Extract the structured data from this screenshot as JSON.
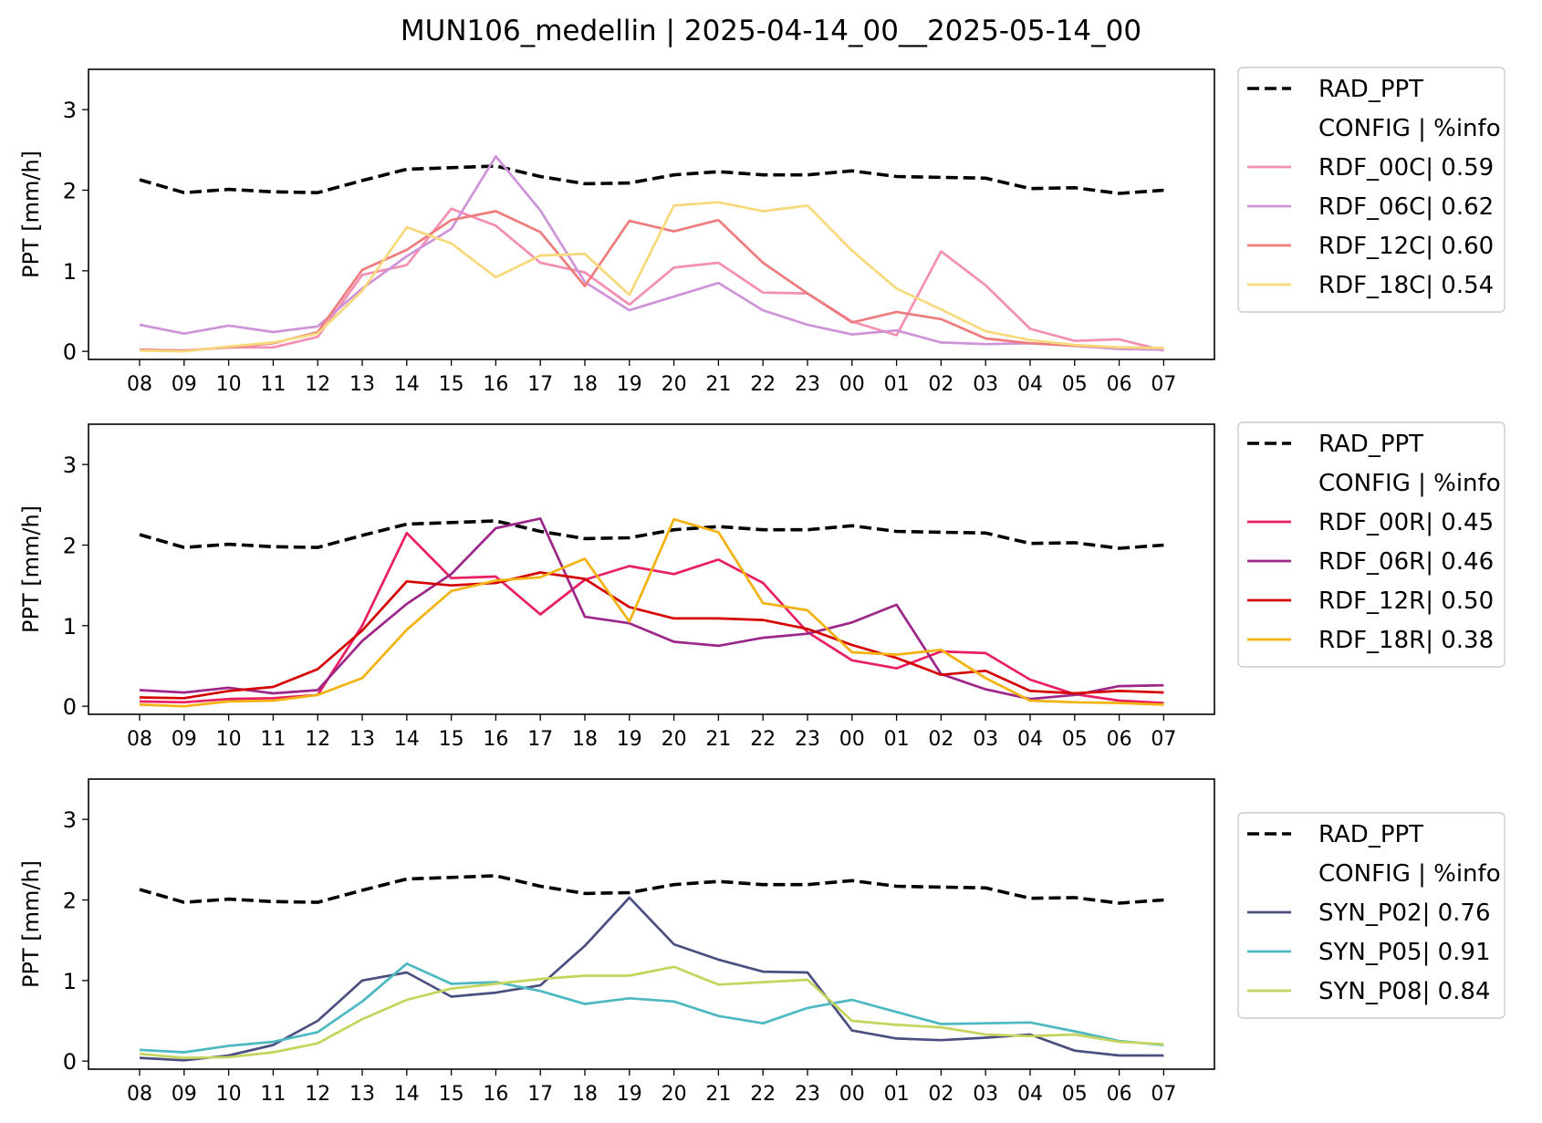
{
  "figure_title": "MUN106_medellin | 2025-04-14_00__2025-05-14_00",
  "chart_data": [
    {
      "type": "line",
      "ylabel": "PPT [mm/h]",
      "ylim": [
        -0.1,
        3.5
      ],
      "yticks": [
        0,
        1,
        2,
        3
      ],
      "categories": [
        "08",
        "09",
        "10",
        "11",
        "12",
        "13",
        "14",
        "15",
        "16",
        "17",
        "18",
        "19",
        "20",
        "21",
        "22",
        "23",
        "00",
        "01",
        "02",
        "03",
        "04",
        "05",
        "06",
        "07"
      ],
      "legend_placement": "outside-right",
      "legend_header": "CONFIG  | %info",
      "series": [
        {
          "name": "RAD_PPT",
          "color": "#000000",
          "dashed": true,
          "values": [
            2.13,
            1.97,
            2.01,
            1.98,
            1.97,
            2.12,
            2.26,
            2.28,
            2.3,
            2.17,
            2.08,
            2.09,
            2.19,
            2.23,
            2.19,
            2.19,
            2.24,
            2.17,
            2.16,
            2.15,
            2.02,
            2.03,
            1.96,
            2.0
          ]
        },
        {
          "name": "RDF_00C| 0.59",
          "color": "#f48fb1",
          "values": [
            0.02,
            0.01,
            0.05,
            0.05,
            0.18,
            0.95,
            1.07,
            1.77,
            1.56,
            1.1,
            0.98,
            0.58,
            1.04,
            1.1,
            0.73,
            0.72,
            0.37,
            0.2,
            1.24,
            0.82,
            0.28,
            0.13,
            0.15,
            0.01
          ]
        },
        {
          "name": "RDF_06C| 0.62",
          "color": "#ce93d8",
          "values": [
            0.33,
            0.22,
            0.32,
            0.24,
            0.31,
            0.78,
            1.18,
            1.52,
            2.42,
            1.75,
            0.86,
            0.51,
            0.68,
            0.85,
            0.51,
            0.33,
            0.21,
            0.26,
            0.11,
            0.09,
            0.1,
            0.07,
            0.03,
            0.02
          ]
        },
        {
          "name": "RDF_12C| 0.60",
          "color": "#ef7c7c",
          "values": [
            0.02,
            0.01,
            0.05,
            0.1,
            0.24,
            1.01,
            1.26,
            1.63,
            1.74,
            1.48,
            0.81,
            1.62,
            1.49,
            1.63,
            1.1,
            0.72,
            0.36,
            0.49,
            0.4,
            0.16,
            0.1,
            0.07,
            0.05,
            0.04
          ]
        },
        {
          "name": "RDF_18C| 0.54",
          "color": "#f7d97c",
          "values": [
            0.01,
            0.0,
            0.06,
            0.11,
            0.22,
            0.75,
            1.54,
            1.34,
            0.92,
            1.19,
            1.21,
            0.7,
            1.81,
            1.85,
            1.74,
            1.81,
            1.25,
            0.78,
            0.52,
            0.25,
            0.14,
            0.08,
            0.05,
            0.04
          ]
        }
      ]
    },
    {
      "type": "line",
      "ylabel": "PPT [mm/h]",
      "ylim": [
        -0.1,
        3.5
      ],
      "yticks": [
        0,
        1,
        2,
        3
      ],
      "categories": [
        "08",
        "09",
        "10",
        "11",
        "12",
        "13",
        "14",
        "15",
        "16",
        "17",
        "18",
        "19",
        "20",
        "21",
        "22",
        "23",
        "00",
        "01",
        "02",
        "03",
        "04",
        "05",
        "06",
        "07"
      ],
      "legend_placement": "outside-right",
      "legend_header": "CONFIG  | %info",
      "series": [
        {
          "name": "RAD_PPT",
          "color": "#000000",
          "dashed": true,
          "values": [
            2.13,
            1.97,
            2.01,
            1.98,
            1.97,
            2.12,
            2.26,
            2.28,
            2.3,
            2.17,
            2.08,
            2.09,
            2.19,
            2.23,
            2.19,
            2.19,
            2.24,
            2.17,
            2.16,
            2.15,
            2.02,
            2.03,
            1.96,
            2.0
          ]
        },
        {
          "name": "RDF_00R| 0.45",
          "color": "#e91e63",
          "values": [
            0.06,
            0.05,
            0.09,
            0.1,
            0.14,
            1.0,
            2.15,
            1.59,
            1.61,
            1.14,
            1.57,
            1.74,
            1.64,
            1.82,
            1.53,
            0.92,
            0.57,
            0.47,
            0.68,
            0.66,
            0.33,
            0.15,
            0.07,
            0.04
          ]
        },
        {
          "name": "RDF_06R| 0.46",
          "color": "#9c2789",
          "values": [
            0.2,
            0.17,
            0.23,
            0.16,
            0.2,
            0.81,
            1.27,
            1.64,
            2.21,
            2.33,
            1.11,
            1.03,
            0.8,
            0.75,
            0.85,
            0.9,
            1.04,
            1.26,
            0.4,
            0.21,
            0.09,
            0.14,
            0.25,
            0.26
          ]
        },
        {
          "name": "RDF_12R| 0.50",
          "color": "#d50000",
          "values": [
            0.11,
            0.1,
            0.19,
            0.24,
            0.46,
            0.94,
            1.55,
            1.5,
            1.53,
            1.66,
            1.58,
            1.23,
            1.09,
            1.09,
            1.07,
            0.96,
            0.76,
            0.6,
            0.39,
            0.44,
            0.19,
            0.16,
            0.19,
            0.17
          ]
        },
        {
          "name": "RDF_18R| 0.38",
          "color": "#f2b20f",
          "values": [
            0.02,
            0.0,
            0.06,
            0.07,
            0.14,
            0.35,
            0.95,
            1.43,
            1.56,
            1.6,
            1.83,
            1.05,
            2.32,
            2.16,
            1.28,
            1.19,
            0.67,
            0.64,
            0.7,
            0.35,
            0.07,
            0.05,
            0.04,
            0.02
          ]
        }
      ]
    },
    {
      "type": "line",
      "ylabel": "PPT [mm/h]",
      "ylim": [
        -0.1,
        3.5
      ],
      "yticks": [
        0,
        1,
        2,
        3
      ],
      "categories": [
        "08",
        "09",
        "10",
        "11",
        "12",
        "13",
        "14",
        "15",
        "16",
        "17",
        "18",
        "19",
        "20",
        "21",
        "22",
        "23",
        "00",
        "01",
        "02",
        "03",
        "04",
        "05",
        "06",
        "07"
      ],
      "legend_placement": "outside-right",
      "legend_header": "CONFIG  | %info",
      "series": [
        {
          "name": "RAD_PPT",
          "color": "#000000",
          "dashed": true,
          "values": [
            2.13,
            1.97,
            2.01,
            1.98,
            1.97,
            2.12,
            2.26,
            2.28,
            2.3,
            2.17,
            2.08,
            2.09,
            2.19,
            2.23,
            2.19,
            2.19,
            2.24,
            2.17,
            2.16,
            2.15,
            2.02,
            2.03,
            1.96,
            2.0
          ]
        },
        {
          "name": "SYN_P02| 0.76",
          "color": "#4b4f80",
          "values": [
            0.04,
            0.01,
            0.07,
            0.2,
            0.5,
            1.0,
            1.1,
            0.8,
            0.85,
            0.94,
            1.43,
            2.03,
            1.45,
            1.26,
            1.11,
            1.1,
            0.38,
            0.28,
            0.26,
            0.29,
            0.33,
            0.13,
            0.07,
            0.07
          ]
        },
        {
          "name": "SYN_P05| 0.91",
          "color": "#4bb8c2",
          "values": [
            0.14,
            0.11,
            0.19,
            0.24,
            0.36,
            0.74,
            1.21,
            0.96,
            0.98,
            0.87,
            0.71,
            0.78,
            0.74,
            0.56,
            0.47,
            0.66,
            0.76,
            0.61,
            0.46,
            0.47,
            0.48,
            0.37,
            0.25,
            0.2
          ]
        },
        {
          "name": "SYN_P08| 0.84",
          "color": "#c5d45c",
          "values": [
            0.09,
            0.04,
            0.05,
            0.11,
            0.22,
            0.52,
            0.76,
            0.9,
            0.96,
            1.02,
            1.06,
            1.06,
            1.17,
            0.95,
            0.98,
            1.01,
            0.5,
            0.45,
            0.42,
            0.33,
            0.31,
            0.33,
            0.24,
            0.21
          ]
        }
      ]
    }
  ]
}
